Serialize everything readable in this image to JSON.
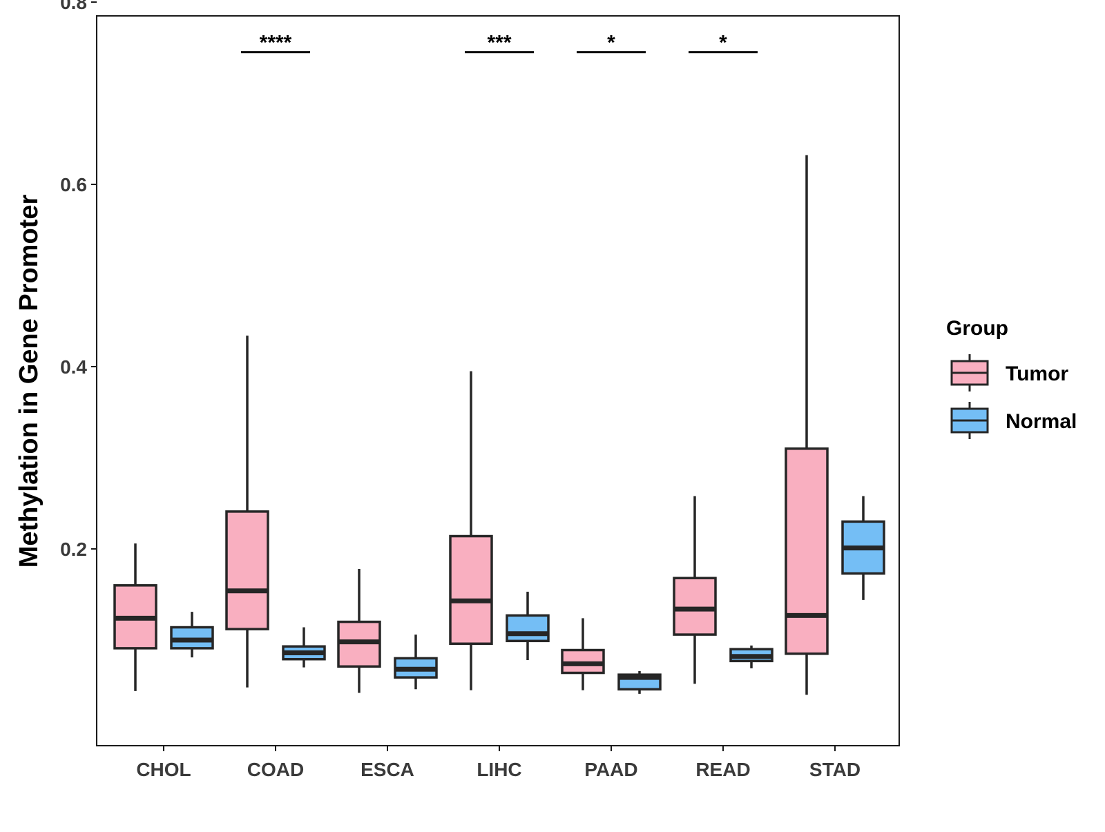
{
  "chart_data": {
    "type": "boxplot",
    "title": "",
    "xlabel": "",
    "ylabel": "Methylation in Gene Promoter",
    "ylim": [
      0.0,
      0.8
    ],
    "yticks": [
      0.2,
      0.4,
      0.6,
      0.8
    ],
    "ytick_labels": [
      "0.2",
      "0.4",
      "0.6",
      "0.8"
    ],
    "grid": false,
    "legend_position": "right",
    "categories": [
      "CHOL",
      "COAD",
      "ESCA",
      "LIHC",
      "PAAD",
      "READ",
      "STAD"
    ],
    "legend": {
      "title": "Group",
      "entries": [
        "Tumor",
        "Normal"
      ]
    },
    "series": [
      {
        "name": "Tumor",
        "color": "#F9AFC0",
        "boxes": [
          {
            "category": "CHOL",
            "min": 0.044,
            "q1": 0.091,
            "median": 0.124,
            "q3": 0.16,
            "max": 0.206
          },
          {
            "category": "COAD",
            "min": 0.048,
            "q1": 0.112,
            "median": 0.154,
            "q3": 0.241,
            "max": 0.434
          },
          {
            "category": "ESCA",
            "min": 0.042,
            "q1": 0.071,
            "median": 0.098,
            "q3": 0.12,
            "max": 0.178
          },
          {
            "category": "LIHC",
            "min": 0.045,
            "q1": 0.096,
            "median": 0.143,
            "q3": 0.214,
            "max": 0.395
          },
          {
            "category": "PAAD",
            "min": 0.045,
            "q1": 0.064,
            "median": 0.074,
            "q3": 0.089,
            "max": 0.124
          },
          {
            "category": "READ",
            "min": 0.052,
            "q1": 0.106,
            "median": 0.134,
            "q3": 0.168,
            "max": 0.258
          },
          {
            "category": "STAD",
            "min": 0.04,
            "q1": 0.085,
            "median": 0.127,
            "q3": 0.31,
            "max": 0.632
          }
        ]
      },
      {
        "name": "Normal",
        "color": "#74BEF5",
        "boxes": [
          {
            "category": "CHOL",
            "min": 0.081,
            "q1": 0.091,
            "median": 0.1,
            "q3": 0.114,
            "max": 0.131
          },
          {
            "category": "COAD",
            "min": 0.07,
            "q1": 0.079,
            "median": 0.086,
            "q3": 0.093,
            "max": 0.114
          },
          {
            "category": "ESCA",
            "min": 0.046,
            "q1": 0.059,
            "median": 0.068,
            "q3": 0.08,
            "max": 0.106
          },
          {
            "category": "LIHC",
            "min": 0.078,
            "q1": 0.099,
            "median": 0.107,
            "q3": 0.127,
            "max": 0.153
          },
          {
            "category": "PAAD",
            "min": 0.041,
            "q1": 0.046,
            "median": 0.059,
            "q3": 0.062,
            "max": 0.066
          },
          {
            "category": "READ",
            "min": 0.069,
            "q1": 0.077,
            "median": 0.082,
            "q3": 0.09,
            "max": 0.094
          },
          {
            "category": "STAD",
            "min": 0.144,
            "q1": 0.173,
            "median": 0.201,
            "q3": 0.23,
            "max": 0.258
          }
        ]
      }
    ],
    "annotations": [
      {
        "category": "COAD",
        "label": "****",
        "y": 0.745
      },
      {
        "category": "LIHC",
        "label": "***",
        "y": 0.745
      },
      {
        "category": "PAAD",
        "label": "*",
        "y": 0.745
      },
      {
        "category": "READ",
        "label": "*",
        "y": 0.745
      }
    ]
  }
}
